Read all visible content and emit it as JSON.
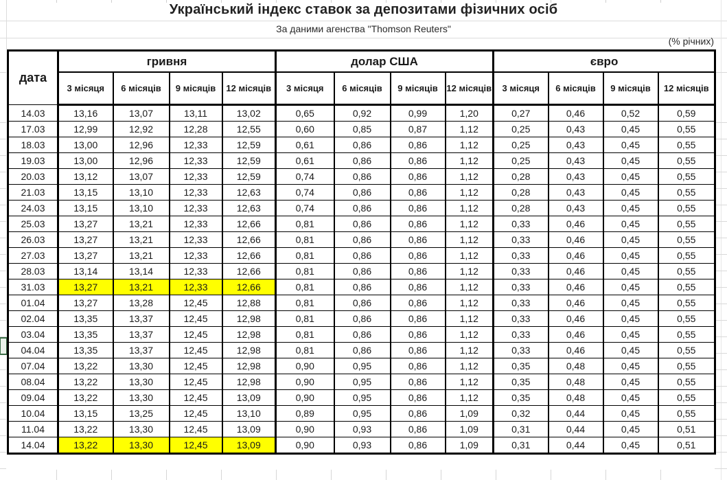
{
  "header": {
    "title": "Український індекс ставок за депозитами фізичних осіб",
    "subtitle": "За даними агенства \"Thomson Reuters\"",
    "units_note": "(% річних)"
  },
  "colors": {
    "highlight": "#ffff00",
    "table_border": "#000000",
    "gridline": "#d9d9d9",
    "row_marker_border": "#3c6e47"
  },
  "table": {
    "date_header": "дата",
    "currency_groups": [
      {
        "label": "гривня"
      },
      {
        "label": "долар США"
      },
      {
        "label": "євро"
      }
    ],
    "tenor_headers": [
      "3 місяця",
      "6 місяців",
      "9 місяців",
      "12 місяців"
    ],
    "rows": [
      {
        "date": "14.03",
        "uah": [
          "13,16",
          "13,07",
          "13,11",
          "13,02"
        ],
        "usd": [
          "0,65",
          "0,92",
          "0,99",
          "1,20"
        ],
        "eur": [
          "0,27",
          "0,46",
          "0,52",
          "0,59"
        ],
        "highlight": false
      },
      {
        "date": "17.03",
        "uah": [
          "12,99",
          "12,92",
          "12,28",
          "12,55"
        ],
        "usd": [
          "0,60",
          "0,85",
          "0,87",
          "1,12"
        ],
        "eur": [
          "0,25",
          "0,43",
          "0,45",
          "0,55"
        ],
        "highlight": false
      },
      {
        "date": "18.03",
        "uah": [
          "13,00",
          "12,96",
          "12,33",
          "12,59"
        ],
        "usd": [
          "0,61",
          "0,86",
          "0,86",
          "1,12"
        ],
        "eur": [
          "0,25",
          "0,43",
          "0,45",
          "0,55"
        ],
        "highlight": false
      },
      {
        "date": "19.03",
        "uah": [
          "13,00",
          "12,96",
          "12,33",
          "12,59"
        ],
        "usd": [
          "0,61",
          "0,86",
          "0,86",
          "1,12"
        ],
        "eur": [
          "0,25",
          "0,43",
          "0,45",
          "0,55"
        ],
        "highlight": false
      },
      {
        "date": "20.03",
        "uah": [
          "13,12",
          "13,07",
          "12,33",
          "12,59"
        ],
        "usd": [
          "0,74",
          "0,86",
          "0,86",
          "1,12"
        ],
        "eur": [
          "0,28",
          "0,43",
          "0,45",
          "0,55"
        ],
        "highlight": false
      },
      {
        "date": "21.03",
        "uah": [
          "13,15",
          "13,10",
          "12,33",
          "12,63"
        ],
        "usd": [
          "0,74",
          "0,86",
          "0,86",
          "1,12"
        ],
        "eur": [
          "0,28",
          "0,43",
          "0,45",
          "0,55"
        ],
        "highlight": false
      },
      {
        "date": "24.03",
        "uah": [
          "13,15",
          "13,10",
          "12,33",
          "12,63"
        ],
        "usd": [
          "0,74",
          "0,86",
          "0,86",
          "1,12"
        ],
        "eur": [
          "0,28",
          "0,43",
          "0,45",
          "0,55"
        ],
        "highlight": false
      },
      {
        "date": "25.03",
        "uah": [
          "13,27",
          "13,21",
          "12,33",
          "12,66"
        ],
        "usd": [
          "0,81",
          "0,86",
          "0,86",
          "1,12"
        ],
        "eur": [
          "0,33",
          "0,46",
          "0,45",
          "0,55"
        ],
        "highlight": false
      },
      {
        "date": "26.03",
        "uah": [
          "13,27",
          "13,21",
          "12,33",
          "12,66"
        ],
        "usd": [
          "0,81",
          "0,86",
          "0,86",
          "1,12"
        ],
        "eur": [
          "0,33",
          "0,46",
          "0,45",
          "0,55"
        ],
        "highlight": false
      },
      {
        "date": "27.03",
        "uah": [
          "13,27",
          "13,21",
          "12,33",
          "12,66"
        ],
        "usd": [
          "0,81",
          "0,86",
          "0,86",
          "1,12"
        ],
        "eur": [
          "0,33",
          "0,46",
          "0,45",
          "0,55"
        ],
        "highlight": false
      },
      {
        "date": "28.03",
        "uah": [
          "13,14",
          "13,14",
          "12,33",
          "12,66"
        ],
        "usd": [
          "0,81",
          "0,86",
          "0,86",
          "1,12"
        ],
        "eur": [
          "0,33",
          "0,46",
          "0,45",
          "0,55"
        ],
        "highlight": false
      },
      {
        "date": "31.03",
        "uah": [
          "13,27",
          "13,21",
          "12,33",
          "12,66"
        ],
        "usd": [
          "0,81",
          "0,86",
          "0,86",
          "1,12"
        ],
        "eur": [
          "0,33",
          "0,46",
          "0,45",
          "0,55"
        ],
        "highlight": true
      },
      {
        "date": "01.04",
        "uah": [
          "13,27",
          "13,28",
          "12,45",
          "12,88"
        ],
        "usd": [
          "0,81",
          "0,86",
          "0,86",
          "1,12"
        ],
        "eur": [
          "0,33",
          "0,46",
          "0,45",
          "0,55"
        ],
        "highlight": false
      },
      {
        "date": "02.04",
        "uah": [
          "13,35",
          "13,37",
          "12,45",
          "12,98"
        ],
        "usd": [
          "0,81",
          "0,86",
          "0,86",
          "1,12"
        ],
        "eur": [
          "0,33",
          "0,46",
          "0,45",
          "0,55"
        ],
        "highlight": false
      },
      {
        "date": "03.04",
        "uah": [
          "13,35",
          "13,37",
          "12,45",
          "12,98"
        ],
        "usd": [
          "0,81",
          "0,86",
          "0,86",
          "1,12"
        ],
        "eur": [
          "0,33",
          "0,46",
          "0,45",
          "0,55"
        ],
        "highlight": false
      },
      {
        "date": "04.04",
        "uah": [
          "13,35",
          "13,37",
          "12,45",
          "12,98"
        ],
        "usd": [
          "0,81",
          "0,86",
          "0,86",
          "1,12"
        ],
        "eur": [
          "0,33",
          "0,46",
          "0,45",
          "0,55"
        ],
        "highlight": false
      },
      {
        "date": "07.04",
        "uah": [
          "13,22",
          "13,30",
          "12,45",
          "12,98"
        ],
        "usd": [
          "0,90",
          "0,95",
          "0,86",
          "1,12"
        ],
        "eur": [
          "0,35",
          "0,48",
          "0,45",
          "0,55"
        ],
        "highlight": false
      },
      {
        "date": "08.04",
        "uah": [
          "13,22",
          "13,30",
          "12,45",
          "12,98"
        ],
        "usd": [
          "0,90",
          "0,95",
          "0,86",
          "1,12"
        ],
        "eur": [
          "0,35",
          "0,48",
          "0,45",
          "0,55"
        ],
        "highlight": false
      },
      {
        "date": "09.04",
        "uah": [
          "13,22",
          "13,30",
          "12,45",
          "13,09"
        ],
        "usd": [
          "0,90",
          "0,95",
          "0,86",
          "1,12"
        ],
        "eur": [
          "0,35",
          "0,48",
          "0,45",
          "0,55"
        ],
        "highlight": false
      },
      {
        "date": "10.04",
        "uah": [
          "13,15",
          "13,25",
          "12,45",
          "13,10"
        ],
        "usd": [
          "0,89",
          "0,95",
          "0,86",
          "1,09"
        ],
        "eur": [
          "0,32",
          "0,44",
          "0,45",
          "0,55"
        ],
        "highlight": false
      },
      {
        "date": "11.04",
        "uah": [
          "13,22",
          "13,30",
          "12,45",
          "13,09"
        ],
        "usd": [
          "0,90",
          "0,93",
          "0,86",
          "1,09"
        ],
        "eur": [
          "0,31",
          "0,44",
          "0,45",
          "0,51"
        ],
        "highlight": false
      },
      {
        "date": "14.04",
        "uah": [
          "13,22",
          "13,30",
          "12,45",
          "13,09"
        ],
        "usd": [
          "0,90",
          "0,93",
          "0,86",
          "1,09"
        ],
        "eur": [
          "0,31",
          "0,44",
          "0,45",
          "0,51"
        ],
        "highlight": true
      }
    ]
  }
}
